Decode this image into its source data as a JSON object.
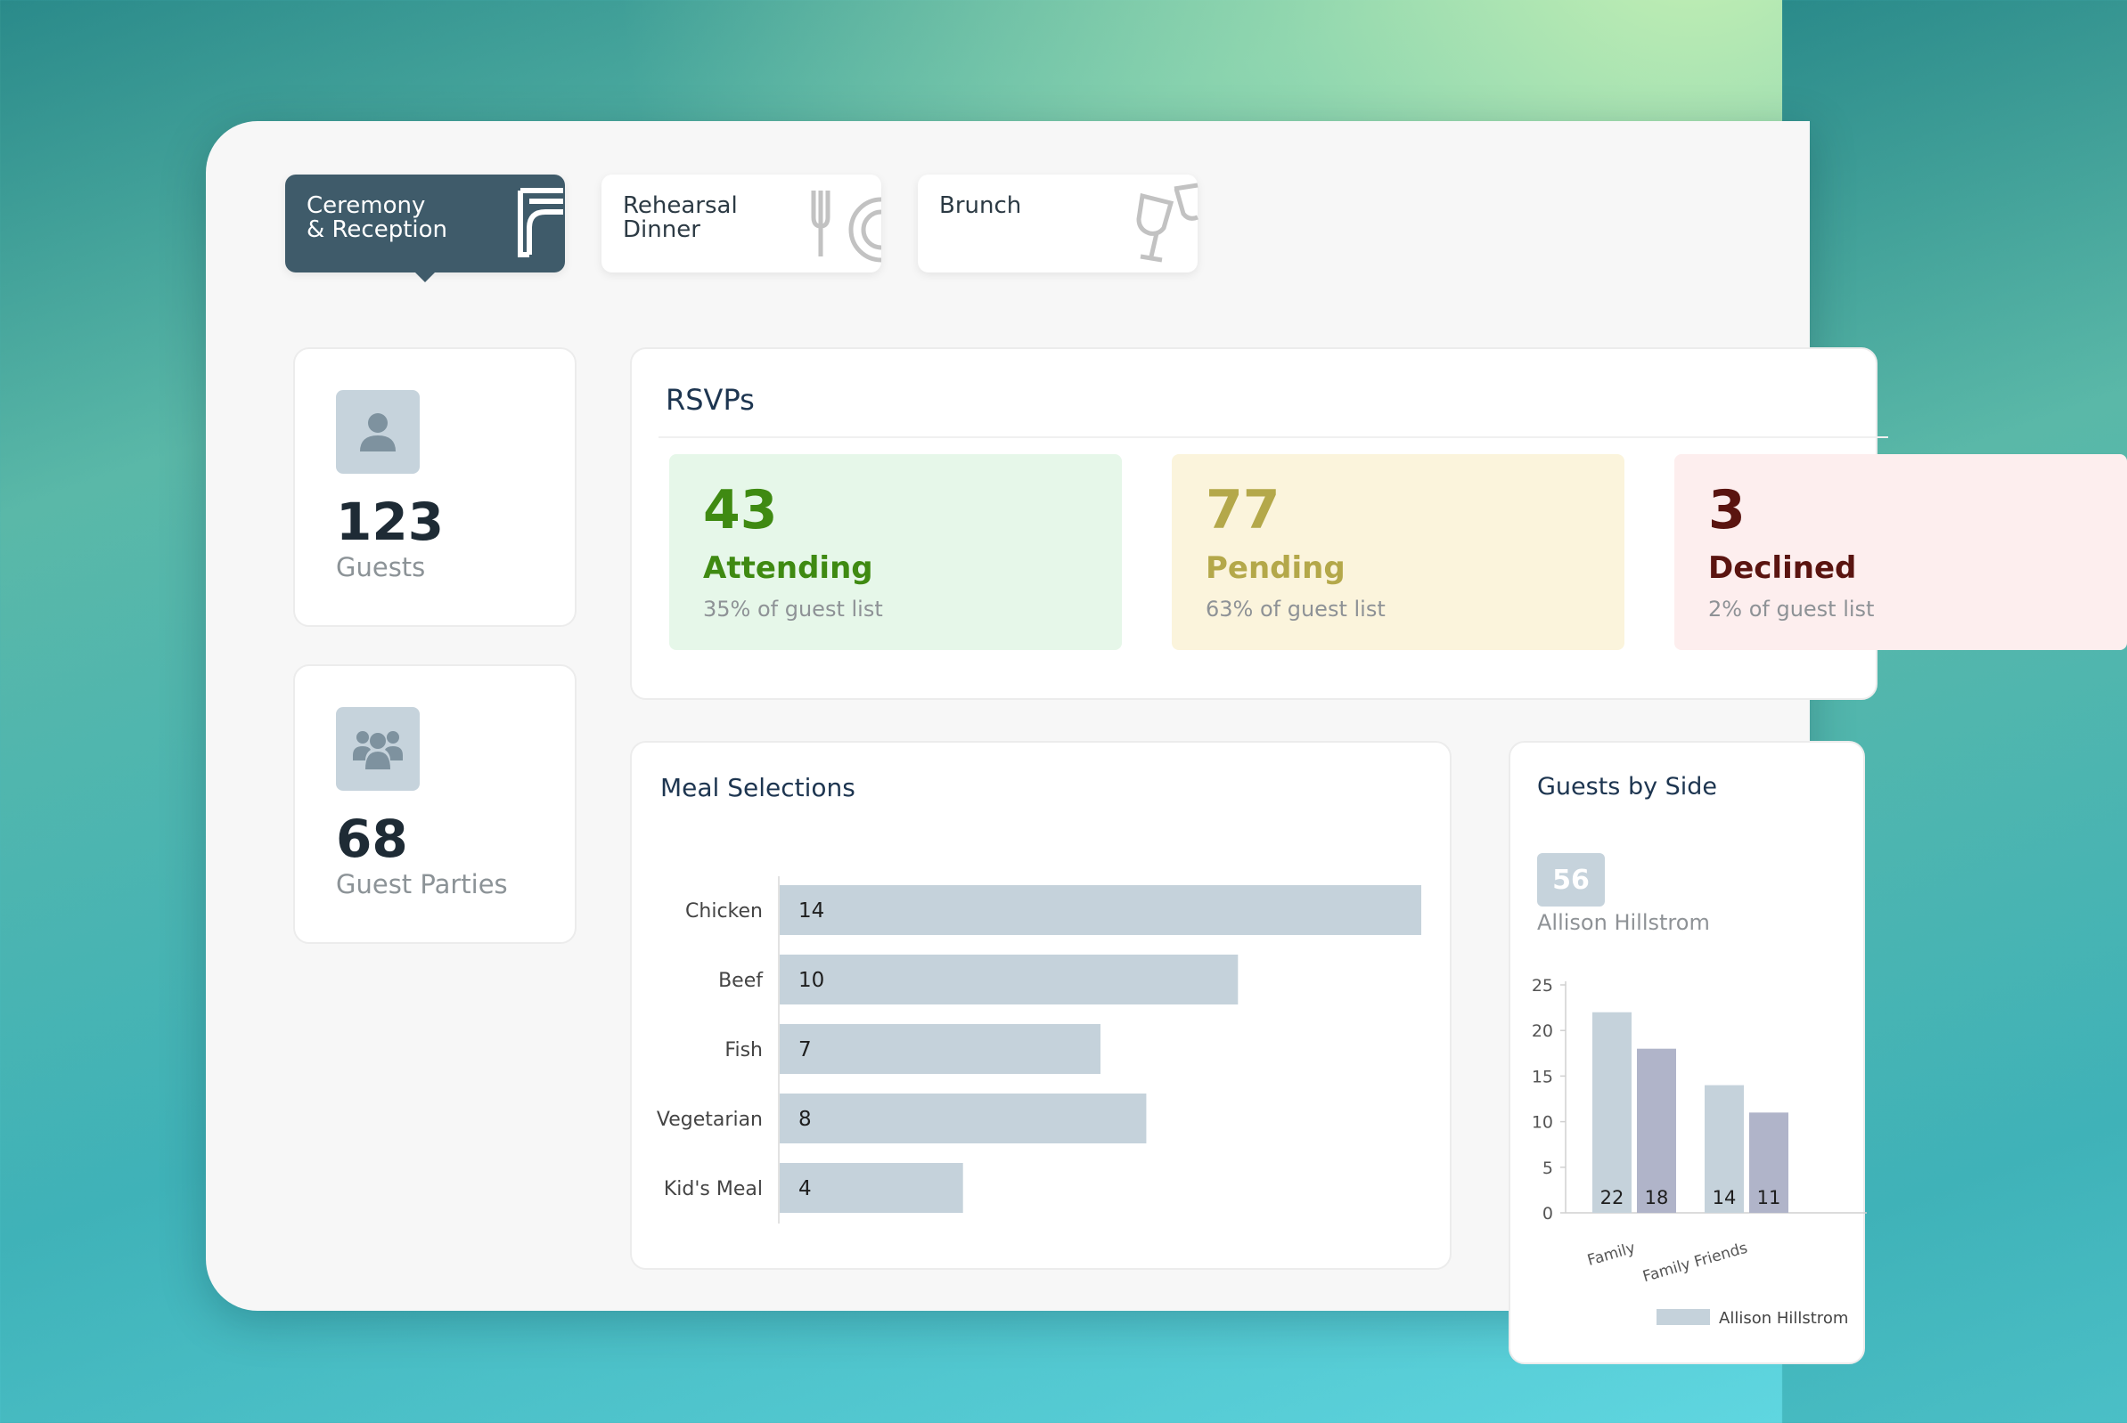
{
  "tabs": [
    {
      "label": "Ceremony & Reception",
      "icon": "door-arch-icon",
      "active": true
    },
    {
      "label": "Rehearsal Dinner",
      "icon": "fork-plate-icon",
      "active": false
    },
    {
      "label": "Brunch",
      "icon": "wine-glasses-icon",
      "active": false
    }
  ],
  "stats": {
    "guests": {
      "value": "123",
      "label": "Guests",
      "icon": "user-icon"
    },
    "parties": {
      "value": "68",
      "label": "Guest Parties",
      "icon": "users-group-icon"
    }
  },
  "rsvps": {
    "title": "RSVPs",
    "attending": {
      "value": "43",
      "label": "Attending",
      "sub": "35% of guest list",
      "color": "#3f8a12",
      "bg": "#e6f7e9"
    },
    "pending": {
      "value": "77",
      "label": "Pending",
      "sub": "63% of guest list",
      "color": "#b4a84a",
      "bg": "#fbf4dc"
    },
    "declined": {
      "value": "3",
      "label": "Declined",
      "sub": "2% of guest list",
      "color": "#5a1410",
      "bg": "#fdeeee"
    }
  },
  "meal_selections": {
    "title": "Meal Selections"
  },
  "guests_by_side": {
    "title": "Guests by Side",
    "badge_value": "56",
    "badge_name": "Allison Hillstrom",
    "legend_label": "Allison Hillstrom"
  },
  "chart_data": [
    {
      "type": "bar",
      "orientation": "horizontal",
      "title": "Meal Selections",
      "categories": [
        "Chicken",
        "Beef",
        "Fish",
        "Vegetarian",
        "Kid's Meal"
      ],
      "values": [
        14,
        10,
        7,
        8,
        4
      ],
      "color": "#c5d2db"
    },
    {
      "type": "bar",
      "title": "Guests by Side",
      "categories": [
        "Family",
        "Family Friends"
      ],
      "series": [
        {
          "name": "Allison Hillstrom",
          "values": [
            22,
            14
          ],
          "color": "#c5d2db"
        },
        {
          "values": [
            18,
            11
          ],
          "color": "#b0b4c9"
        }
      ],
      "ylim": [
        0,
        25
      ],
      "yticks": [
        0,
        5,
        10,
        15,
        20,
        25
      ],
      "grid": false,
      "legend": "bottom"
    }
  ]
}
